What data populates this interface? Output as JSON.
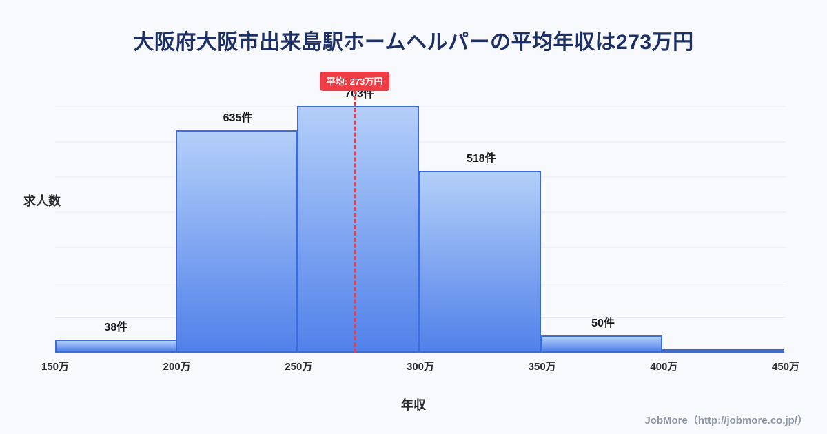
{
  "page": {
    "footer": "JobMore（http://jobmore.co.jp/）"
  },
  "colors": {
    "background": "#f7f9fd",
    "title_text": "#1d2f63",
    "bar_gradient_top": "#b3cff9",
    "bar_gradient_bottom": "#5181ea",
    "bar_border": "#3c6cd7",
    "average_red": "#ee3d45",
    "gridline": "#e7ecf5",
    "tick_text": "#2b2b2b",
    "footer_text": "#8e96a5"
  },
  "chart_data": {
    "type": "bar",
    "title": "大阪府大阪市出来島駅ホームヘルパーの平均年収は273万円",
    "xlabel": "年収",
    "ylabel": "求人数",
    "x_ticks": [
      "150万",
      "200万",
      "250万",
      "300万",
      "350万",
      "400万",
      "450万"
    ],
    "ylim": [
      0,
      750
    ],
    "grid": true,
    "legend": false,
    "bins": [
      {
        "range": "150万-200万",
        "count": 38,
        "label": "38件"
      },
      {
        "range": "200万-250万",
        "count": 635,
        "label": "635件"
      },
      {
        "range": "250万-300万",
        "count": 703,
        "label": "703件"
      },
      {
        "range": "300万-350万",
        "count": 518,
        "label": "518件"
      },
      {
        "range": "350万-400万",
        "count": 50,
        "label": "50件"
      },
      {
        "range": "400万-450万",
        "count": 10,
        "label": ""
      }
    ],
    "average": {
      "value": 273,
      "label": "平均: 273万円"
    }
  }
}
